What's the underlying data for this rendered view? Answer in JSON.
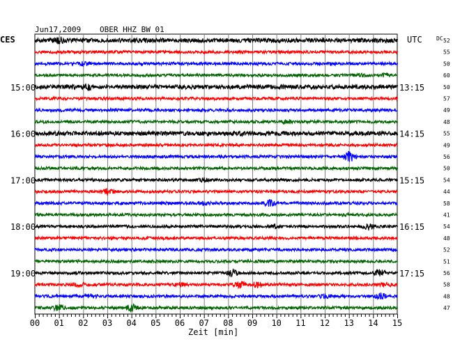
{
  "header": {
    "date": "Jun17,2009",
    "station": "OBER HHZ BW 01",
    "left_tz": "CES",
    "right_tz": "UTC",
    "dc_label": "DC"
  },
  "chart_data": {
    "type": "line",
    "title": "Jun17,2009   OBER HHZ BW 01",
    "xlabel": "Zeit [min]",
    "ylabel": "",
    "x_range": [
      0,
      15
    ],
    "x_ticks": [
      "00",
      "01",
      "02",
      "03",
      "04",
      "05",
      "06",
      "07",
      "08",
      "09",
      "10",
      "11",
      "12",
      "13",
      "14",
      "15"
    ],
    "grid": true,
    "colors": [
      "#000000",
      "#ff0000",
      "#0000ff",
      "#006400"
    ],
    "left_time_labels": [
      "15:00",
      "16:00",
      "17:00",
      "18:00",
      "19:00"
    ],
    "right_time_labels": [
      "13:15",
      "14:15",
      "15:15",
      "16:15",
      "17:15"
    ],
    "dc_values": [
      "52",
      "55",
      "50",
      "60",
      "50",
      "57",
      "49",
      "48",
      "55",
      "49",
      "56",
      "50",
      "54",
      "44",
      "58",
      "41",
      "54",
      "48",
      "52",
      "51",
      "56",
      "58",
      "48",
      "47"
    ],
    "traces": [
      {
        "color_index": 0,
        "amplitude": 3,
        "events": [
          [
            1.0,
            6
          ]
        ]
      },
      {
        "color_index": 1,
        "amplitude": 2,
        "events": []
      },
      {
        "color_index": 2,
        "amplitude": 2,
        "events": [
          [
            2.0,
            4
          ]
        ]
      },
      {
        "color_index": 3,
        "amplitude": 2,
        "events": [
          [
            13.5,
            4
          ],
          [
            14.5,
            4
          ]
        ]
      },
      {
        "color_index": 0,
        "amplitude": 3,
        "events": [
          [
            2.2,
            6
          ]
        ]
      },
      {
        "color_index": 1,
        "amplitude": 2,
        "events": []
      },
      {
        "color_index": 2,
        "amplitude": 2,
        "events": []
      },
      {
        "color_index": 3,
        "amplitude": 2,
        "events": [
          [
            10.5,
            4
          ]
        ]
      },
      {
        "color_index": 0,
        "amplitude": 3,
        "events": [
          [
            8.5,
            4
          ]
        ]
      },
      {
        "color_index": 1,
        "amplitude": 2,
        "events": []
      },
      {
        "color_index": 2,
        "amplitude": 2,
        "events": [
          [
            13.0,
            10
          ]
        ]
      },
      {
        "color_index": 3,
        "amplitude": 2,
        "events": []
      },
      {
        "color_index": 0,
        "amplitude": 2,
        "events": [
          [
            7.0,
            4
          ]
        ]
      },
      {
        "color_index": 1,
        "amplitude": 2,
        "events": [
          [
            3.0,
            6
          ]
        ]
      },
      {
        "color_index": 2,
        "amplitude": 2,
        "events": [
          [
            7.0,
            4
          ],
          [
            9.7,
            6
          ]
        ]
      },
      {
        "color_index": 3,
        "amplitude": 2,
        "events": []
      },
      {
        "color_index": 0,
        "amplitude": 2,
        "events": [
          [
            10.0,
            4
          ],
          [
            13.8,
            6
          ]
        ]
      },
      {
        "color_index": 1,
        "amplitude": 2,
        "events": []
      },
      {
        "color_index": 2,
        "amplitude": 2,
        "events": []
      },
      {
        "color_index": 3,
        "amplitude": 2,
        "events": []
      },
      {
        "color_index": 0,
        "amplitude": 2,
        "events": [
          [
            8.2,
            6
          ],
          [
            14.3,
            6
          ]
        ]
      },
      {
        "color_index": 1,
        "amplitude": 2,
        "events": [
          [
            1.8,
            4
          ],
          [
            6.0,
            4
          ],
          [
            8.5,
            6
          ],
          [
            9.2,
            6
          ],
          [
            14.5,
            4
          ]
        ]
      },
      {
        "color_index": 2,
        "amplitude": 2,
        "events": [
          [
            2.3,
            4
          ],
          [
            12.0,
            4
          ],
          [
            14.3,
            6
          ]
        ]
      },
      {
        "color_index": 3,
        "amplitude": 2,
        "events": [
          [
            1.0,
            6
          ],
          [
            4.0,
            6
          ]
        ]
      }
    ]
  }
}
